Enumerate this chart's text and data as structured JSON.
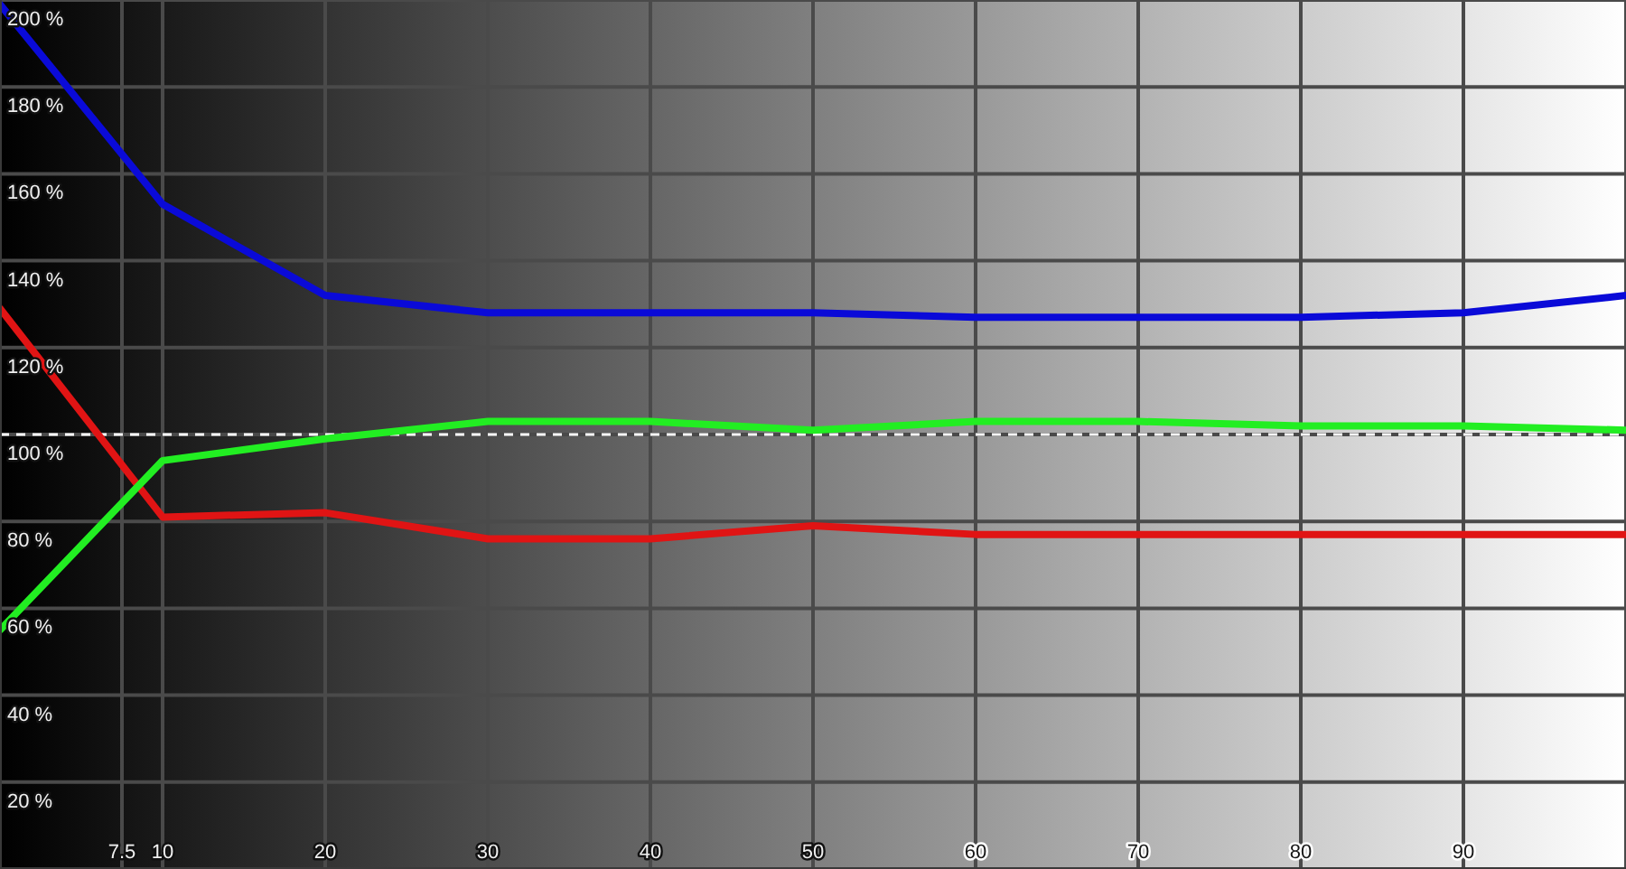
{
  "chart_data": {
    "type": "line",
    "x": [
      0,
      10,
      20,
      30,
      40,
      50,
      60,
      70,
      80,
      90,
      100
    ],
    "series": [
      {
        "color": "#0a0ad8",
        "values": [
          199,
          153,
          132,
          128,
          128,
          128,
          127,
          127,
          127,
          128,
          132
        ]
      },
      {
        "color": "#e01414",
        "values": [
          129,
          81,
          82,
          76,
          76,
          79,
          77,
          77,
          77,
          77,
          77
        ]
      },
      {
        "color": "#22ee22",
        "values": [
          55,
          94,
          99,
          103,
          103,
          101,
          103,
          103,
          102,
          102,
          101
        ]
      }
    ],
    "xlim": [
      0,
      100
    ],
    "xticks": [
      7.5,
      10,
      20,
      30,
      40,
      50,
      60,
      70,
      80,
      90
    ],
    "ylim": [
      0,
      200
    ],
    "yticks": [
      {
        "value": 20,
        "label": "20 %"
      },
      {
        "value": 40,
        "label": "40 %"
      },
      {
        "value": 60,
        "label": "60 %"
      },
      {
        "value": 80,
        "label": "80 %"
      },
      {
        "value": 100,
        "label": "100 %"
      },
      {
        "value": 120,
        "label": "120 %"
      },
      {
        "value": 140,
        "label": "140 %"
      },
      {
        "value": 160,
        "label": "160 %"
      },
      {
        "value": 180,
        "label": "180 %"
      },
      {
        "value": 200,
        "label": "200 %"
      }
    ],
    "grid": true,
    "ref_lines": [
      {
        "axis": "y",
        "value": 100,
        "color": "#ffffff",
        "line_style": "dashed"
      }
    ]
  }
}
